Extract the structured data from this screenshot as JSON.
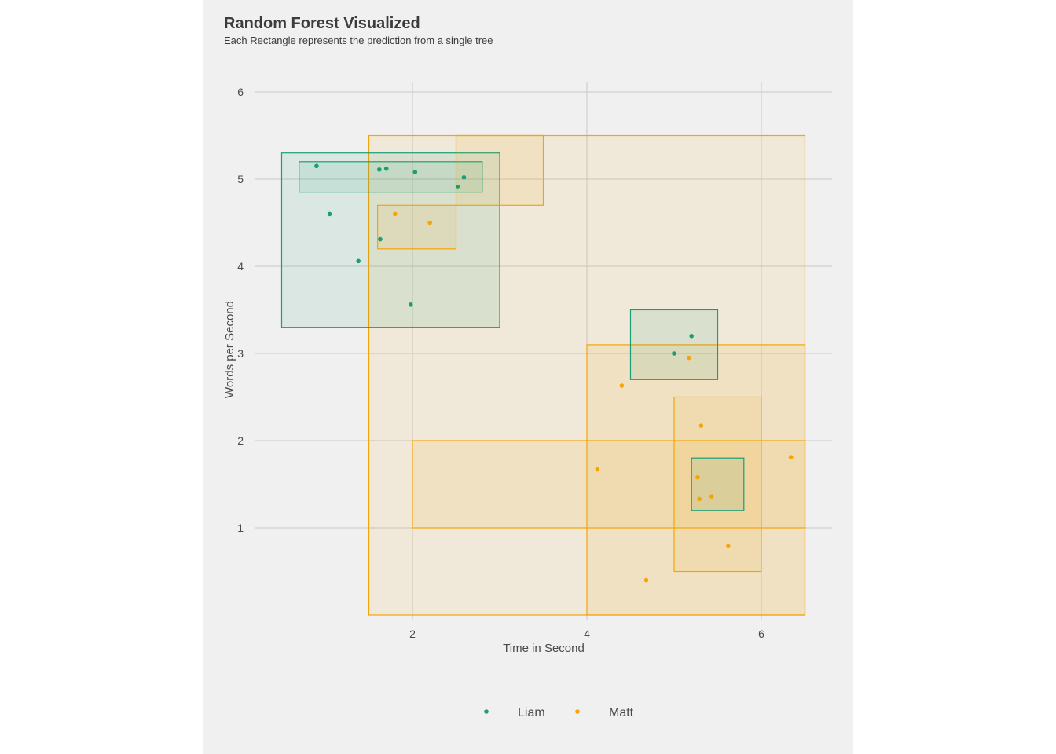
{
  "chart_data": {
    "type": "scatter",
    "title": "Random Forest Visualized",
    "subtitle": "Each Rectangle represents the prediction from a single tree",
    "xlabel": "Time in Second",
    "ylabel": "Words per Second",
    "xlim": [
      0.0,
      6.8
    ],
    "ylim": [
      0.0,
      6.1
    ],
    "xticks": [
      2,
      4,
      6
    ],
    "yticks": [
      1,
      2,
      3,
      4,
      5,
      6
    ],
    "grid": true,
    "legend_position": "bottom",
    "colors": {
      "Liam": "#1b9e77",
      "Matt": "#f5a40a"
    },
    "series": [
      {
        "name": "Liam",
        "color": "#1b9e77",
        "points": [
          {
            "x": 0.9,
            "y": 5.15
          },
          {
            "x": 1.05,
            "y": 4.6
          },
          {
            "x": 1.38,
            "y": 4.06
          },
          {
            "x": 1.63,
            "y": 4.31
          },
          {
            "x": 1.62,
            "y": 5.11
          },
          {
            "x": 1.7,
            "y": 5.12
          },
          {
            "x": 1.98,
            "y": 3.56
          },
          {
            "x": 2.03,
            "y": 5.08
          },
          {
            "x": 2.52,
            "y": 4.91
          },
          {
            "x": 2.59,
            "y": 5.02
          },
          {
            "x": 5.0,
            "y": 3.0
          },
          {
            "x": 5.2,
            "y": 3.2
          }
        ]
      },
      {
        "name": "Matt",
        "color": "#f5a40a",
        "points": [
          {
            "x": 1.8,
            "y": 4.6
          },
          {
            "x": 2.2,
            "y": 4.5
          },
          {
            "x": 4.12,
            "y": 1.67
          },
          {
            "x": 4.4,
            "y": 2.63
          },
          {
            "x": 4.68,
            "y": 0.4
          },
          {
            "x": 5.17,
            "y": 2.95
          },
          {
            "x": 5.27,
            "y": 1.58
          },
          {
            "x": 5.29,
            "y": 1.33
          },
          {
            "x": 5.31,
            "y": 2.17
          },
          {
            "x": 5.43,
            "y": 1.36
          },
          {
            "x": 5.62,
            "y": 0.79
          },
          {
            "x": 6.34,
            "y": 1.81
          }
        ]
      }
    ],
    "rectangles": [
      {
        "class": "Matt",
        "x0": 1.5,
        "x1": 6.5,
        "y0": 0.0,
        "y1": 5.5
      },
      {
        "class": "Liam",
        "x0": 0.5,
        "x1": 3.0,
        "y0": 3.3,
        "y1": 5.3
      },
      {
        "class": "Liam",
        "x0": 0.7,
        "x1": 2.8,
        "y0": 4.85,
        "y1": 5.2
      },
      {
        "class": "Matt",
        "x0": 2.5,
        "x1": 3.5,
        "y0": 4.7,
        "y1": 5.5
      },
      {
        "class": "Matt",
        "x0": 1.6,
        "x1": 2.5,
        "y0": 4.2,
        "y1": 4.7
      },
      {
        "class": "Matt",
        "x0": 4.0,
        "x1": 6.5,
        "y0": 0.0,
        "y1": 3.1
      },
      {
        "class": "Matt",
        "x0": 2.0,
        "x1": 6.5,
        "y0": 1.0,
        "y1": 2.0
      },
      {
        "class": "Liam",
        "x0": 4.5,
        "x1": 5.5,
        "y0": 2.7,
        "y1": 3.5
      },
      {
        "class": "Matt",
        "x0": 5.0,
        "x1": 6.0,
        "y0": 0.5,
        "y1": 2.5
      },
      {
        "class": "Liam",
        "x0": 5.2,
        "x1": 5.8,
        "y0": 1.2,
        "y1": 1.8
      }
    ],
    "legend": [
      "Liam",
      "Matt"
    ]
  }
}
